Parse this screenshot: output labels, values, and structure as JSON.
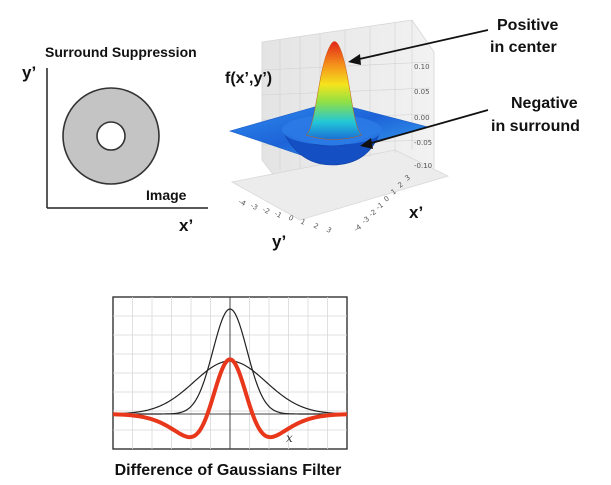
{
  "surround_panel": {
    "title": "Surround Suppression",
    "y_axis_label": "y’",
    "x_axis_label": "x’",
    "image_label": "Image",
    "ring_color": "#c4c4c4",
    "hole_color": "#ffffff"
  },
  "surface_panel": {
    "function_label": "f(x’,y’)",
    "x_axis_label": "x’",
    "y_axis_label": "y’",
    "z_ticks": [
      "0.10",
      "0.05",
      "0.00",
      "-0.05",
      "-0.10"
    ],
    "y_ticks": [
      "-4",
      "-3",
      "-2",
      "-1",
      "0",
      "1",
      "2",
      "3"
    ],
    "x_ticks": [
      "-4",
      "-3",
      "-2",
      "-1",
      "0",
      "1",
      "2",
      "3"
    ],
    "annotations": {
      "positive_line1": "Positive",
      "positive_line2": "in center",
      "negative_line1": "Negative",
      "negative_line2": "in surround"
    }
  },
  "dog_panel": {
    "caption": "Difference of Gaussians Filter",
    "x_label": "x",
    "curve_color": "#e8371a",
    "gaussian_color": "#222222"
  }
}
